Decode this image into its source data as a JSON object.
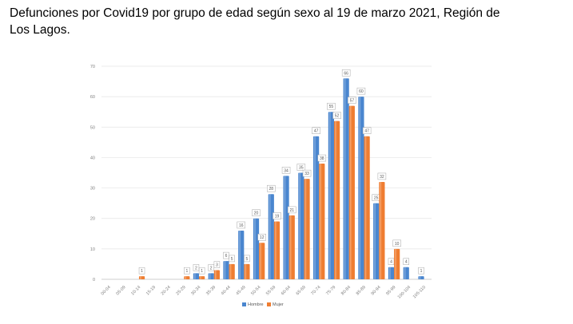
{
  "title": "Defunciones por Covid19 por grupo de edad según sexo al 19 de marzo 2021, Región de Los Lagos.",
  "colors": {
    "hombre": "#4a86cf",
    "mujer": "#ef7d31"
  },
  "chart_data": {
    "type": "bar",
    "categories": [
      "00-04",
      "05-09",
      "10-14",
      "15-19",
      "20-24",
      "25-29",
      "30-34",
      "35-39",
      "40-44",
      "45-49",
      "50-54",
      "55-59",
      "60-64",
      "65-69",
      "70-74",
      "75-79",
      "80-84",
      "85-89",
      "90-94",
      "95-99",
      "100-104",
      "105-110"
    ],
    "series": [
      {
        "name": "Hombre",
        "values": [
          0,
          0,
          0,
          0,
          0,
          0,
          2,
          2,
          6,
          16,
          20,
          28,
          34,
          35,
          47,
          55,
          66,
          60,
          25,
          4,
          4,
          1
        ],
        "labels": [
          "",
          "",
          "",
          "",
          "",
          "",
          "2",
          "2",
          "6",
          "16",
          "20",
          "28",
          "34",
          "35",
          "47",
          "55",
          "66",
          "60",
          "25",
          "4",
          "4",
          "1"
        ]
      },
      {
        "name": "Mujer",
        "values": [
          0,
          0,
          1,
          0,
          0,
          1,
          1,
          3,
          5,
          5,
          12,
          19,
          21,
          33,
          38,
          52,
          57,
          47,
          32,
          10,
          0,
          0
        ],
        "labels": [
          "",
          "",
          "1",
          "",
          "",
          "1",
          "1",
          "3",
          "5",
          "5",
          "12",
          "19",
          "21",
          "33",
          "38",
          "52",
          "57",
          "47",
          "32",
          "10",
          "",
          ""
        ]
      }
    ],
    "yticks": [
      "0",
      "10",
      "20",
      "30",
      "40",
      "50",
      "60",
      "70"
    ],
    "ylim": [
      0,
      70
    ],
    "legend_position": "bottom"
  }
}
